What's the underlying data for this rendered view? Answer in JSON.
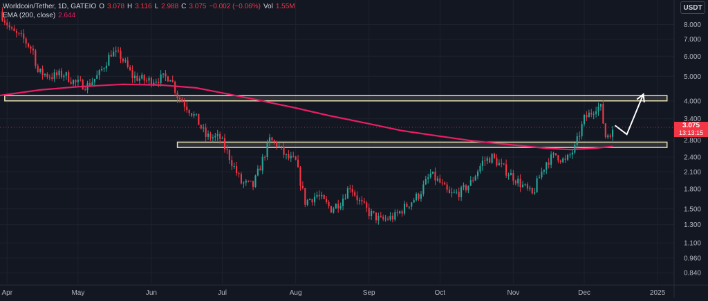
{
  "header": {
    "symbol": "Worldcoin/Tether, 1D, GATEIO",
    "open_label": "O",
    "open": "3.078",
    "high_label": "H",
    "high": "3.116",
    "low_label": "L",
    "low": "2.988",
    "close_label": "C",
    "close": "3.075",
    "change": "−0.002 (−0.06%)",
    "vol_label": "Vol",
    "volume": "1.55M",
    "indicator": "EMA (200, close)",
    "indicator_value": "2.644"
  },
  "currency": "USDT",
  "last_price": {
    "value": "3.075",
    "countdown": "13:13:15"
  },
  "colors": {
    "background": "#131722",
    "up": "#26a69a",
    "down": "#f23645",
    "ema": "#e91e63",
    "zone_fill": "#f5f0d6",
    "zone_stroke": "#e8e0b0",
    "arrow": "#ffffff"
  },
  "chart_data": {
    "type": "candlestick",
    "scale": "log",
    "ylim": [
      0.76,
      10.0
    ],
    "x_range": [
      "2024-03-29",
      "2025-01-08"
    ],
    "y_ticks": [
      "8.000",
      "7.000",
      "6.000",
      "5.000",
      "4.000",
      "3.400",
      "2.800",
      "2.400",
      "2.100",
      "1.800",
      "1.500",
      "1.300",
      "1.100",
      "0.960",
      "0.840"
    ],
    "x_ticks": [
      {
        "label": "Apr",
        "date": "2024-04-01"
      },
      {
        "label": "May",
        "date": "2024-05-01"
      },
      {
        "label": "Jun",
        "date": "2024-06-01"
      },
      {
        "label": "Jul",
        "date": "2024-07-01"
      },
      {
        "label": "Aug",
        "date": "2024-08-01"
      },
      {
        "label": "Sep",
        "date": "2024-09-01"
      },
      {
        "label": "Oct",
        "date": "2024-10-01"
      },
      {
        "label": "Nov",
        "date": "2024-11-01"
      },
      {
        "label": "Dec",
        "date": "2024-12-01"
      },
      {
        "label": "2025",
        "date": "2025-01-01"
      }
    ],
    "close_path": [
      [
        "2024-03-29",
        9.0
      ],
      [
        "2024-04-03",
        7.5
      ],
      [
        "2024-04-08",
        7.0
      ],
      [
        "2024-04-12",
        6.3
      ],
      [
        "2024-04-14",
        5.2
      ],
      [
        "2024-04-20",
        5.0
      ],
      [
        "2024-04-25",
        5.1
      ],
      [
        "2024-04-30",
        4.7
      ],
      [
        "2024-05-05",
        4.6
      ],
      [
        "2024-05-10",
        5.1
      ],
      [
        "2024-05-15",
        6.2
      ],
      [
        "2024-05-19",
        6.0
      ],
      [
        "2024-05-24",
        5.0
      ],
      [
        "2024-05-30",
        4.8
      ],
      [
        "2024-06-05",
        4.9
      ],
      [
        "2024-06-09",
        5.0
      ],
      [
        "2024-06-12",
        4.2
      ],
      [
        "2024-06-17",
        3.7
      ],
      [
        "2024-06-20",
        3.4
      ],
      [
        "2024-06-24",
        2.9
      ],
      [
        "2024-06-30",
        2.85
      ],
      [
        "2024-07-04",
        2.4
      ],
      [
        "2024-07-09",
        1.9
      ],
      [
        "2024-07-14",
        1.85
      ],
      [
        "2024-07-17",
        2.2
      ],
      [
        "2024-07-21",
        2.8
      ],
      [
        "2024-07-24",
        2.7
      ],
      [
        "2024-07-28",
        2.4
      ],
      [
        "2024-08-01",
        2.3
      ],
      [
        "2024-08-05",
        1.6
      ],
      [
        "2024-08-10",
        1.7
      ],
      [
        "2024-08-16",
        1.5
      ],
      [
        "2024-08-20",
        1.6
      ],
      [
        "2024-08-24",
        1.85
      ],
      [
        "2024-08-28",
        1.6
      ],
      [
        "2024-09-01",
        1.45
      ],
      [
        "2024-09-06",
        1.35
      ],
      [
        "2024-09-12",
        1.4
      ],
      [
        "2024-09-17",
        1.55
      ],
      [
        "2024-09-22",
        1.7
      ],
      [
        "2024-09-27",
        2.05
      ],
      [
        "2024-10-01",
        1.9
      ],
      [
        "2024-10-05",
        1.7
      ],
      [
        "2024-10-10",
        1.75
      ],
      [
        "2024-10-14",
        1.9
      ],
      [
        "2024-10-19",
        2.3
      ],
      [
        "2024-10-23",
        2.4
      ],
      [
        "2024-10-27",
        2.2
      ],
      [
        "2024-11-01",
        2.0
      ],
      [
        "2024-11-05",
        1.85
      ],
      [
        "2024-11-09",
        1.7
      ],
      [
        "2024-11-12",
        2.0
      ],
      [
        "2024-11-15",
        2.3
      ],
      [
        "2024-11-19",
        2.45
      ],
      [
        "2024-11-23",
        2.3
      ],
      [
        "2024-11-27",
        2.6
      ],
      [
        "2024-12-01",
        3.4
      ],
      [
        "2024-12-04",
        3.6
      ],
      [
        "2024-12-06",
        3.8
      ],
      [
        "2024-12-08",
        3.75
      ],
      [
        "2024-12-10",
        2.9
      ],
      [
        "2024-12-13",
        3.075
      ]
    ],
    "ema_200": [
      [
        "2024-03-29",
        4.2
      ],
      [
        "2024-04-15",
        4.42
      ],
      [
        "2024-05-01",
        4.55
      ],
      [
        "2024-05-20",
        4.65
      ],
      [
        "2024-06-05",
        4.62
      ],
      [
        "2024-06-20",
        4.5
      ],
      [
        "2024-07-01",
        4.3
      ],
      [
        "2024-07-15",
        4.05
      ],
      [
        "2024-08-01",
        3.75
      ],
      [
        "2024-08-15",
        3.5
      ],
      [
        "2024-09-01",
        3.25
      ],
      [
        "2024-09-15",
        3.05
      ],
      [
        "2024-10-01",
        2.9
      ],
      [
        "2024-10-15",
        2.78
      ],
      [
        "2024-11-01",
        2.68
      ],
      [
        "2024-11-15",
        2.6
      ],
      [
        "2024-11-25",
        2.57
      ],
      [
        "2024-12-05",
        2.6
      ],
      [
        "2024-12-13",
        2.644
      ]
    ],
    "zones": [
      {
        "from": "2024-03-31",
        "to": "2025-01-05",
        "low": 4.0,
        "high": 4.2
      },
      {
        "from": "2024-06-12",
        "to": "2025-01-05",
        "low": 2.62,
        "high": 2.75
      }
    ],
    "projection": [
      [
        "2024-12-14",
        3.2
      ],
      [
        "2024-12-19",
        2.95
      ],
      [
        "2024-12-26",
        4.25
      ]
    ]
  }
}
